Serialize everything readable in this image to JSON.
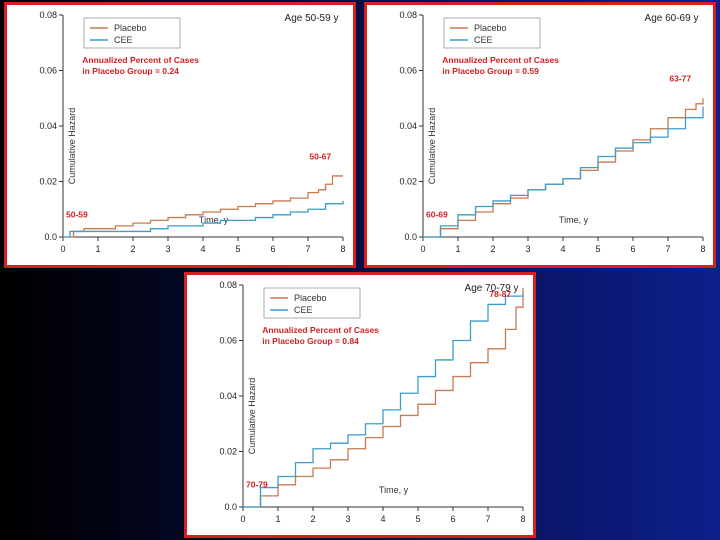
{
  "chart_data": [
    {
      "type": "line",
      "age_label": "Age 50-59 y",
      "xlabel": "Time, y",
      "ylabel": "Cumulative Hazard",
      "xlim": [
        0,
        8
      ],
      "ylim": [
        0,
        0.08
      ],
      "xticks": [
        "0",
        "1",
        "2",
        "3",
        "4",
        "5",
        "6",
        "7",
        "8"
      ],
      "yticks": [
        "0.0",
        "0.02",
        "0.04",
        "0.06",
        "0.08"
      ],
      "legend": [
        "Placebo",
        "CEE"
      ],
      "note_line1": "Annualized Percent of Cases",
      "note_line2": "in Placebo Group = 0.24",
      "start_label": "50-59",
      "end_label": "50-67",
      "colors": {
        "Placebo": "#c87a50",
        "CEE": "#3a9ec8"
      },
      "series": [
        {
          "name": "Placebo",
          "x": [
            0,
            0.3,
            0.6,
            1.0,
            1.5,
            2.0,
            2.5,
            3.0,
            3.5,
            4.0,
            4.5,
            5.0,
            5.5,
            6.0,
            6.5,
            7.0,
            7.3,
            7.5,
            7.7,
            8.0
          ],
          "y": [
            0,
            0.002,
            0.003,
            0.003,
            0.004,
            0.005,
            0.006,
            0.007,
            0.008,
            0.009,
            0.01,
            0.011,
            0.012,
            0.013,
            0.014,
            0.016,
            0.017,
            0.019,
            0.022,
            0.022
          ]
        },
        {
          "name": "CEE",
          "x": [
            0,
            0.2,
            0.5,
            1.0,
            1.5,
            2.0,
            2.5,
            3.0,
            3.5,
            4.0,
            4.5,
            5.0,
            5.5,
            6.0,
            6.5,
            7.0,
            7.5,
            8.0
          ],
          "y": [
            0,
            0.002,
            0.002,
            0.002,
            0.002,
            0.002,
            0.003,
            0.004,
            0.004,
            0.005,
            0.006,
            0.006,
            0.007,
            0.008,
            0.009,
            0.01,
            0.012,
            0.013
          ]
        }
      ]
    },
    {
      "type": "line",
      "age_label": "Age 60-69 y",
      "xlabel": "Time, y",
      "ylabel": "Cumulative Hazard",
      "xlim": [
        0,
        8
      ],
      "ylim": [
        0,
        0.08
      ],
      "xticks": [
        "0",
        "1",
        "2",
        "3",
        "4",
        "5",
        "6",
        "7",
        "8"
      ],
      "yticks": [
        "0.0",
        "0.02",
        "0.04",
        "0.06",
        "0.08"
      ],
      "legend": [
        "Placebo",
        "CEE"
      ],
      "note_line1": "Annualized Percent of Cases",
      "note_line2": "in Placebo Group = 0.59",
      "start_label": "60-69",
      "end_label": "63-77",
      "colors": {
        "Placebo": "#c87a50",
        "CEE": "#3a9ec8"
      },
      "series": [
        {
          "name": "Placebo",
          "x": [
            0,
            0.5,
            1.0,
            1.5,
            2.0,
            2.5,
            3.0,
            3.5,
            4.0,
            4.5,
            5.0,
            5.5,
            6.0,
            6.5,
            7.0,
            7.5,
            7.8,
            8.0
          ],
          "y": [
            0,
            0.003,
            0.006,
            0.009,
            0.012,
            0.014,
            0.017,
            0.019,
            0.021,
            0.024,
            0.027,
            0.031,
            0.035,
            0.039,
            0.043,
            0.046,
            0.048,
            0.05
          ]
        },
        {
          "name": "CEE",
          "x": [
            0,
            0.5,
            1.0,
            1.5,
            2.0,
            2.5,
            3.0,
            3.5,
            4.0,
            4.5,
            5.0,
            5.5,
            6.0,
            6.5,
            7.0,
            7.5,
            8.0
          ],
          "y": [
            0,
            0.004,
            0.008,
            0.011,
            0.013,
            0.015,
            0.017,
            0.019,
            0.021,
            0.025,
            0.029,
            0.032,
            0.034,
            0.036,
            0.039,
            0.043,
            0.047
          ]
        }
      ]
    },
    {
      "type": "line",
      "age_label": "Age 70-79 y",
      "xlabel": "Time, y",
      "ylabel": "Cumulative Hazard",
      "xlim": [
        0,
        8
      ],
      "ylim": [
        0,
        0.08
      ],
      "xticks": [
        "0",
        "1",
        "2",
        "3",
        "4",
        "5",
        "6",
        "7",
        "8"
      ],
      "yticks": [
        "0.0",
        "0.02",
        "0.04",
        "0.06",
        "0.08"
      ],
      "legend": [
        "Placebo",
        "CEE"
      ],
      "note_line1": "Annualized Percent of Cases",
      "note_line2": "in Placebo Group = 0.84",
      "start_label": "70-79",
      "end_label": "78-87",
      "colors": {
        "Placebo": "#c87a50",
        "CEE": "#3a9ec8"
      },
      "series": [
        {
          "name": "Placebo",
          "x": [
            0,
            0.5,
            1.0,
            1.5,
            2.0,
            2.5,
            3.0,
            3.5,
            4.0,
            4.5,
            5.0,
            5.5,
            6.0,
            6.5,
            7.0,
            7.5,
            7.8,
            8.0
          ],
          "y": [
            0,
            0.004,
            0.008,
            0.011,
            0.014,
            0.017,
            0.021,
            0.025,
            0.029,
            0.033,
            0.037,
            0.042,
            0.047,
            0.052,
            0.057,
            0.064,
            0.072,
            0.079
          ]
        },
        {
          "name": "CEE",
          "x": [
            0,
            0.5,
            1.0,
            1.5,
            2.0,
            2.5,
            3.0,
            3.5,
            4.0,
            4.5,
            5.0,
            5.5,
            6.0,
            6.5,
            7.0,
            7.5,
            8.0
          ],
          "y": [
            0,
            0.007,
            0.011,
            0.016,
            0.021,
            0.023,
            0.026,
            0.03,
            0.035,
            0.041,
            0.047,
            0.053,
            0.06,
            0.067,
            0.073,
            0.076,
            0.077
          ]
        }
      ]
    }
  ]
}
